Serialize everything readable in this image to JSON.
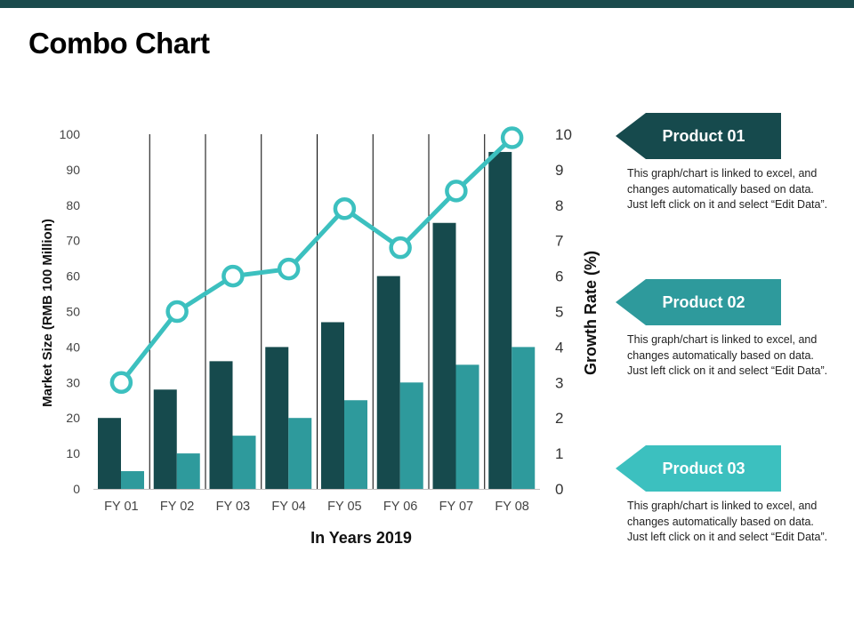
{
  "page": {
    "title": "Combo Chart"
  },
  "colors": {
    "top_bar": "#1a4a4c",
    "bar_dark": "#164a4d",
    "bar_mid": "#2e9a9c",
    "line": "#3cc0bf",
    "tag_1": "#164a4d",
    "tag_2": "#2e9a9c",
    "tag_3": "#3cc0bf"
  },
  "chart_data": {
    "type": "bar",
    "categories": [
      "FY 01",
      "FY 02",
      "FY 03",
      "FY 04",
      "FY 05",
      "FY 06",
      "FY 07",
      "FY 08"
    ],
    "series": [
      {
        "kind": "bar",
        "axis": "left",
        "color": "#164a4d",
        "values": [
          20,
          28,
          36,
          40,
          47,
          60,
          75,
          95
        ]
      },
      {
        "kind": "bar",
        "axis": "left",
        "color": "#2e9a9c",
        "values": [
          5,
          10,
          15,
          20,
          25,
          30,
          35,
          40
        ]
      },
      {
        "kind": "line",
        "axis": "right",
        "color": "#3cc0bf",
        "marker": "hollow-circle",
        "values": [
          3,
          5,
          6,
          6.2,
          7.9,
          6.8,
          8.4,
          9.9
        ]
      }
    ],
    "xlabel": "In Years 2019",
    "ylabel": "Market Size (RMB 100 Million)",
    "y2label": "Growth Rate (%)",
    "ylim": [
      0,
      100
    ],
    "y2lim": [
      0,
      10
    ],
    "yticks": [
      "0",
      "10",
      "20",
      "30",
      "40",
      "50",
      "60",
      "70",
      "80",
      "90",
      "100"
    ],
    "y2ticks": [
      "0",
      "1",
      "2",
      "3",
      "4",
      "5",
      "6",
      "7",
      "8",
      "9",
      "10"
    ],
    "grid": "vertical category separators"
  },
  "products": [
    {
      "label": "Product 01",
      "text": "This graph/chart is linked to excel, and changes automatically based on data. Just left click on it and select “Edit Data”."
    },
    {
      "label": "Product 02",
      "text": "This graph/chart is linked to excel, and changes automatically based on data. Just left click on it and select “Edit Data”."
    },
    {
      "label": "Product 03",
      "text": "This graph/chart is linked to excel, and changes automatically based on data. Just left click on it and select “Edit Data”."
    }
  ]
}
